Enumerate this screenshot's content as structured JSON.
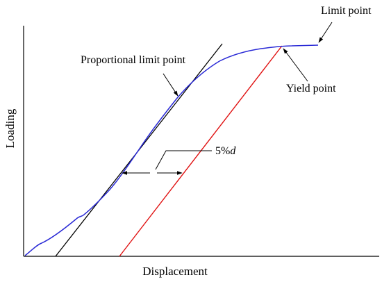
{
  "diagram": {
    "x_axis_title": "Displacement",
    "y_axis_title": "Loading",
    "annotations": {
      "limit_point": "Limit point",
      "proportional_limit_point": "Proportional limit point",
      "yield_point": "Yield point",
      "offset_prefix": "5%",
      "offset_symbol": "d"
    },
    "colors": {
      "curve": "#2a2ad6",
      "offset_line": "#e01010",
      "tangent_line": "#000000",
      "axes": "#000000"
    }
  }
}
